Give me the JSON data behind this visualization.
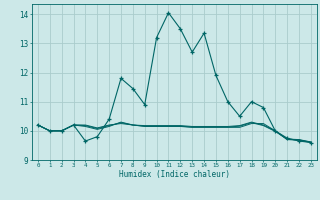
{
  "xlabel": "Humidex (Indice chaleur)",
  "bg_color": "#cce8e8",
  "grid_color": "#aacccc",
  "line_color": "#006666",
  "xlim": [
    -0.5,
    23.5
  ],
  "ylim": [
    9.0,
    14.35
  ],
  "yticks": [
    9,
    10,
    11,
    12,
    13,
    14
  ],
  "xticks": [
    0,
    1,
    2,
    3,
    4,
    5,
    6,
    7,
    8,
    9,
    10,
    11,
    12,
    13,
    14,
    15,
    16,
    17,
    18,
    19,
    20,
    21,
    22,
    23
  ],
  "series_main_x": [
    0,
    1,
    2,
    3,
    4,
    5,
    6,
    7,
    8,
    9,
    10,
    11,
    12,
    13,
    14,
    15,
    16,
    17,
    18,
    19,
    20,
    21,
    22,
    23
  ],
  "series_main_y": [
    10.2,
    10.0,
    10.0,
    10.2,
    9.65,
    9.8,
    10.4,
    11.8,
    11.45,
    10.9,
    13.2,
    14.05,
    13.5,
    12.7,
    13.35,
    11.9,
    11.0,
    10.5,
    11.0,
    10.8,
    10.0,
    9.75,
    9.65,
    9.6
  ],
  "series_flat1_x": [
    0,
    1,
    2,
    3,
    4,
    5,
    6,
    7,
    8,
    9,
    10,
    11,
    12,
    13,
    14,
    15,
    16,
    17,
    18,
    19,
    20,
    21,
    22,
    23
  ],
  "series_flat1_y": [
    10.2,
    10.0,
    10.0,
    10.2,
    10.15,
    10.05,
    10.15,
    10.3,
    10.2,
    10.15,
    10.15,
    10.15,
    10.15,
    10.12,
    10.12,
    10.12,
    10.12,
    10.12,
    10.25,
    10.25,
    10.0,
    9.7,
    9.68,
    9.6
  ],
  "series_flat2_x": [
    0,
    1,
    2,
    3,
    4,
    5,
    6,
    7,
    8,
    9,
    10,
    11,
    12,
    13,
    14,
    15,
    16,
    17,
    18,
    19,
    20,
    21,
    22,
    23
  ],
  "series_flat2_y": [
    10.2,
    10.0,
    10.0,
    10.2,
    10.2,
    10.1,
    10.2,
    10.25,
    10.2,
    10.18,
    10.18,
    10.18,
    10.18,
    10.15,
    10.15,
    10.15,
    10.15,
    10.18,
    10.3,
    10.2,
    10.0,
    9.72,
    9.7,
    9.62
  ],
  "series_flat3_x": [
    0,
    1,
    2,
    3,
    4,
    5,
    6,
    7,
    8,
    9,
    10,
    11,
    12,
    13,
    14,
    15,
    16,
    17,
    18,
    19,
    20,
    21,
    22,
    23
  ],
  "series_flat3_y": [
    10.2,
    10.0,
    10.0,
    10.2,
    10.18,
    10.08,
    10.18,
    10.28,
    10.2,
    10.16,
    10.16,
    10.16,
    10.16,
    10.13,
    10.13,
    10.13,
    10.13,
    10.16,
    10.28,
    10.18,
    9.98,
    9.71,
    9.69,
    9.61
  ]
}
